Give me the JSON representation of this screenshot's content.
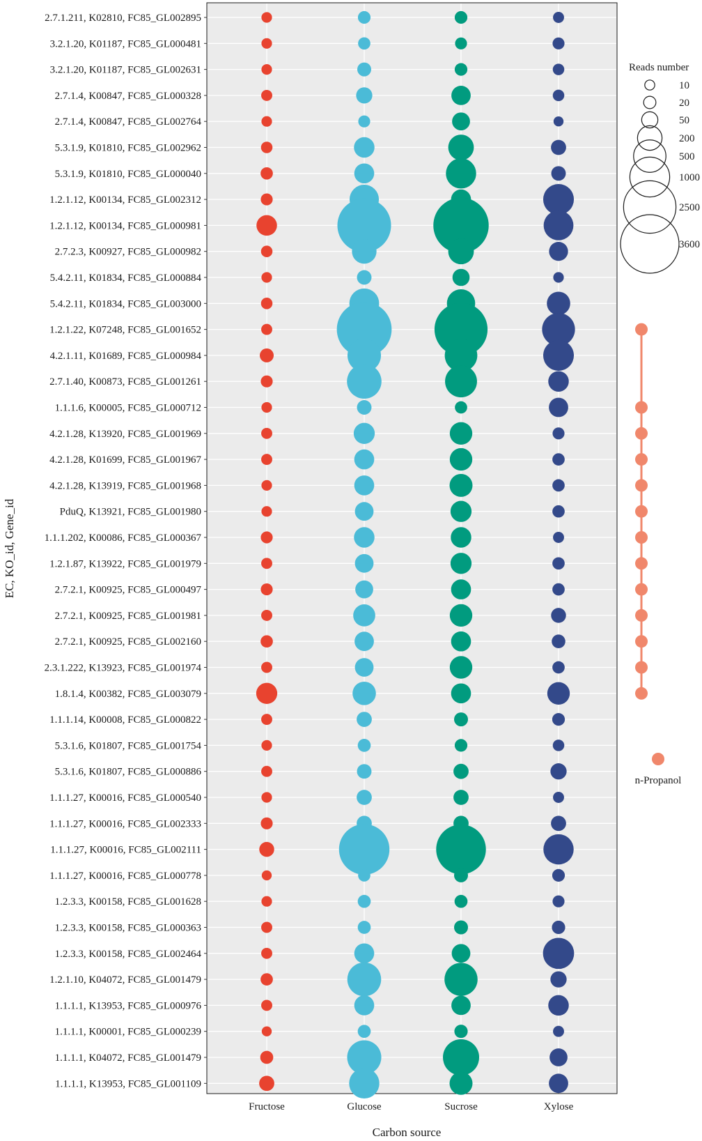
{
  "chart_data": {
    "type": "bubble",
    "xlabel": "Carbon source",
    "ylabel": "EC, KO_id, Gene_id",
    "categories": [
      "Fructose",
      "Glucose",
      "Sucrose",
      "Xylose"
    ],
    "colors": {
      "Fructose": "#e8432f",
      "Glucose": "#4bbbd7",
      "Sucrose": "#019b7f",
      "Xylose": "#33498a",
      "pathway": "#f0876b",
      "panel_bg": "#ebebeb",
      "grid": "#ffffff"
    },
    "rows": [
      {
        "label": "2.7.1.211, K02810, FC85_GL002895",
        "reads": [
          12,
          22,
          22,
          14
        ]
      },
      {
        "label": "3.2.1.20, K01187, FC85_GL000481",
        "reads": [
          12,
          20,
          18,
          18
        ]
      },
      {
        "label": "3.2.1.20, K01187, FC85_GL002631",
        "reads": [
          12,
          30,
          22,
          16
        ]
      },
      {
        "label": "2.7.1.4, K00847, FC85_GL000328",
        "reads": [
          14,
          50,
          90,
          16
        ]
      },
      {
        "label": "2.7.1.4, K00847, FC85_GL002764",
        "reads": [
          12,
          18,
          70,
          10
        ]
      },
      {
        "label": "5.3.1.9, K01810, FC85_GL002962",
        "reads": [
          16,
          110,
          230,
          40
        ]
      },
      {
        "label": "5.3.1.9, K01810, FC85_GL000040",
        "reads": [
          20,
          100,
          400,
          35
        ]
      },
      {
        "label": "1.2.1.12, K00134, FC85_GL002312",
        "reads": [
          18,
          360,
          100,
          420
        ]
      },
      {
        "label": "1.2.1.12, K00134, FC85_GL000981",
        "reads": [
          110,
          2700,
          3000,
          380
        ]
      },
      {
        "label": "2.7.2.3, K00927, FC85_GL000982",
        "reads": [
          16,
          200,
          230,
          85
        ]
      },
      {
        "label": "5.4.2.11, K01834, FC85_GL000884",
        "reads": [
          12,
          35,
          60,
          12
        ]
      },
      {
        "label": "5.4.2.11, K01834, FC85_GL003000",
        "reads": [
          16,
          380,
          320,
          170
        ]
      },
      {
        "label": "1.2.1.22, K07248, FC85_GL001652",
        "reads": [
          14,
          2900,
          2600,
          530
        ]
      },
      {
        "label": "4.2.1.11, K01689, FC85_GL000984",
        "reads": [
          30,
          560,
          510,
          420
        ]
      },
      {
        "label": "2.7.1.40, K00873, FC85_GL001261",
        "reads": [
          18,
          620,
          480,
          110
        ]
      },
      {
        "label": "1.1.1.6, K00005, FC85_GL000712",
        "reads": [
          12,
          35,
          20,
          90
        ]
      },
      {
        "label": "4.2.1.28, K13920, FC85_GL001969",
        "reads": [
          14,
          120,
          150,
          18
        ]
      },
      {
        "label": "4.2.1.28, K01699, FC85_GL001967",
        "reads": [
          14,
          100,
          150,
          20
        ]
      },
      {
        "label": "4.2.1.28, K13919, FC85_GL001968",
        "reads": [
          12,
          100,
          160,
          20
        ]
      },
      {
        "label": "PduQ, K13921, FC85_GL001980",
        "reads": [
          12,
          80,
          120,
          20
        ]
      },
      {
        "label": "1.1.1.202, K00086, FC85_GL000367",
        "reads": [
          18,
          110,
          110,
          14
        ]
      },
      {
        "label": "1.2.1.87, K13922, FC85_GL001979",
        "reads": [
          14,
          80,
          120,
          20
        ]
      },
      {
        "label": "2.7.2.1, K00925, FC85_GL000497",
        "reads": [
          18,
          70,
          100,
          20
        ]
      },
      {
        "label": "2.7.2.1, K00925, FC85_GL001981",
        "reads": [
          14,
          140,
          150,
          38
        ]
      },
      {
        "label": "2.7.2.1, K00925, FC85_GL002160",
        "reads": [
          20,
          90,
          100,
          28
        ]
      },
      {
        "label": "2.3.1.222, K13923, FC85_GL001974",
        "reads": [
          14,
          80,
          150,
          20
        ]
      },
      {
        "label": "1.8.1.4, K00382, FC85_GL003079",
        "reads": [
          120,
          170,
          100,
          150
        ]
      },
      {
        "label": "1.1.1.14, K00008, FC85_GL000822",
        "reads": [
          14,
          40,
          30,
          22
        ]
      },
      {
        "label": "5.3.1.6, K01807, FC85_GL001754",
        "reads": [
          12,
          24,
          22,
          16
        ]
      },
      {
        "label": "5.3.1.6, K01807, FC85_GL000886",
        "reads": [
          14,
          35,
          40,
          50
        ]
      },
      {
        "label": "1.1.1.27, K00016, FC85_GL000540",
        "reads": [
          12,
          40,
          40,
          14
        ]
      },
      {
        "label": "1.1.1.27, K00016, FC85_GL002333",
        "reads": [
          18,
          40,
          40,
          40
        ]
      },
      {
        "label": "1.1.1.27, K00016, FC85_GL002111",
        "reads": [
          38,
          2200,
          2100,
          400
        ]
      },
      {
        "label": "1.1.1.27, K00016, FC85_GL000778",
        "reads": [
          10,
          20,
          30,
          22
        ]
      },
      {
        "label": "1.2.3.3, K00158, FC85_GL001628",
        "reads": [
          12,
          24,
          24,
          18
        ]
      },
      {
        "label": "1.2.3.3, K00158, FC85_GL000363",
        "reads": [
          14,
          24,
          30,
          26
        ]
      },
      {
        "label": "1.2.3.3, K00158, FC85_GL002464",
        "reads": [
          14,
          100,
          80,
          440
        ]
      },
      {
        "label": "1.2.1.10, K04072, FC85_GL001479",
        "reads": [
          20,
          580,
          540,
          50
        ]
      },
      {
        "label": "1.1.1.1, K13953, FC85_GL000976",
        "reads": [
          14,
          100,
          90,
          110
        ]
      },
      {
        "label": "1.1.1.1, K00001, FC85_GL000239",
        "reads": [
          10,
          24,
          26,
          14
        ]
      },
      {
        "label": "1.1.1.1, K04072, FC85_GL001479",
        "reads": [
          24,
          600,
          730,
          70
        ]
      },
      {
        "label": "1.1.1.1, K13953, FC85_GL001109",
        "reads": [
          40,
          400,
          160,
          90
        ]
      }
    ],
    "size_legend": {
      "title": "Reads number",
      "breaks": [
        10,
        20,
        50,
        200,
        500,
        1000,
        2500,
        3600
      ]
    },
    "pathway": {
      "name": "n-Propanol",
      "rows": [
        12,
        15,
        16,
        17,
        18,
        19,
        20,
        21,
        22,
        23,
        24,
        25,
        26
      ]
    }
  }
}
